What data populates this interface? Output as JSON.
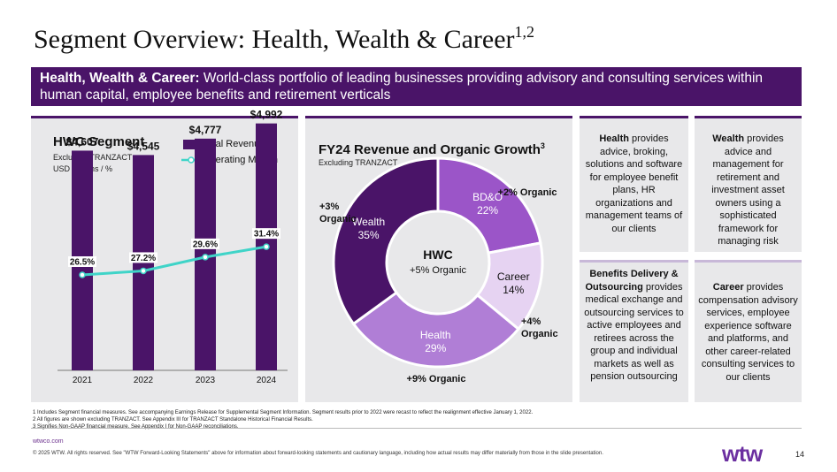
{
  "title": "Segment Overview: Health, Wealth & Career",
  "title_sup": "1,2",
  "banner": {
    "lead": "Health, Wealth & Career:",
    "text": " World-class portfolio of leading businesses providing advisory and consulting services within human capital, employee benefits and retirement verticals"
  },
  "colors": {
    "brand": "#4a1468",
    "line": "#3fd4c8",
    "bdo": "#9b55c8",
    "career": "#e6d3f2",
    "health": "#b07ed6",
    "wealth": "#4a1468"
  },
  "hwc_panel": {
    "title": "HWC Segment",
    "subtitle1": "Excluding TRANZACT",
    "subtitle2": "USD millions / %",
    "legend_revenue": "Total Revenue",
    "legend_margin": "Operating Margin"
  },
  "donut_panel": {
    "title": "FY24 Revenue and Organic Growth",
    "title_sup": "3",
    "subtitle": "Excluding TRANZACT",
    "center_title": "HWC",
    "center_sub": "+5% Organic"
  },
  "chart_data": [
    {
      "type": "bar",
      "title": "HWC Segment",
      "categories": [
        "2021",
        "2022",
        "2023",
        "2024"
      ],
      "series": [
        {
          "name": "Total Revenue",
          "values": [
            4607,
            4545,
            4777,
            4992
          ],
          "labels": [
            "$4,607",
            "$4,545",
            "$4,777",
            "$4,992"
          ]
        },
        {
          "name": "Operating Margin",
          "type": "line",
          "values": [
            26.5,
            27.2,
            29.6,
            31.4
          ],
          "labels": [
            "26.5%",
            "27.2%",
            "29.6%",
            "31.4%"
          ]
        }
      ]
    },
    {
      "type": "pie",
      "title": "FY24 Revenue and Organic Growth",
      "slices": [
        {
          "name": "BD&O",
          "value": 22,
          "label": "22%",
          "growth": "+2% Organic"
        },
        {
          "name": "Career",
          "value": 14,
          "label": "14%",
          "growth": "+4% Organic"
        },
        {
          "name": "Health",
          "value": 29,
          "label": "29%",
          "growth": "+9% Organic"
        },
        {
          "name": "Wealth",
          "value": 35,
          "label": "35%",
          "growth": "+3% Organic"
        }
      ]
    }
  ],
  "boxes": {
    "health": {
      "lead": "Health",
      "text": " provides advice, broking, solutions and software for employee benefit plans, HR organizations and management teams of our clients"
    },
    "wealth": {
      "lead": "Wealth",
      "text": " provides advice and management for retirement and investment asset owners using a sophisticated framework for managing risk"
    },
    "bdo": {
      "lead": "Benefits Delivery & Outsourcing",
      "text": " provides medical exchange and outsourcing services to active employees and retirees across the group and individual markets as well as pension outsourcing"
    },
    "career": {
      "lead": "Career",
      "text": " provides compensation advisory services, employee experience software and platforms, and other career-related consulting services to our clients"
    }
  },
  "footnotes": [
    "1 Includes Segment financial measures. See accompanying Earnings Release for Supplemental Segment Information. Segment results prior to 2022 were recast to reflect the realignment effective January 1, 2022.",
    "2 All figures are shown excluding TRANZACT. See Appendix III for TRANZACT Standalone Historical Financial Results.",
    "3 Signifies Non-GAAP financial measure. See Appendix I for Non-GAAP reconciliations."
  ],
  "footer": {
    "url": "wtwco.com",
    "copyright": "© 2025 WTW. All rights reserved. See \"WTW Forward-Looking Statements\" above for information about forward-looking statements and cautionary language, including how actual results may differ materially from those in the slide presentation.",
    "logo": "wtw",
    "page": "14"
  }
}
